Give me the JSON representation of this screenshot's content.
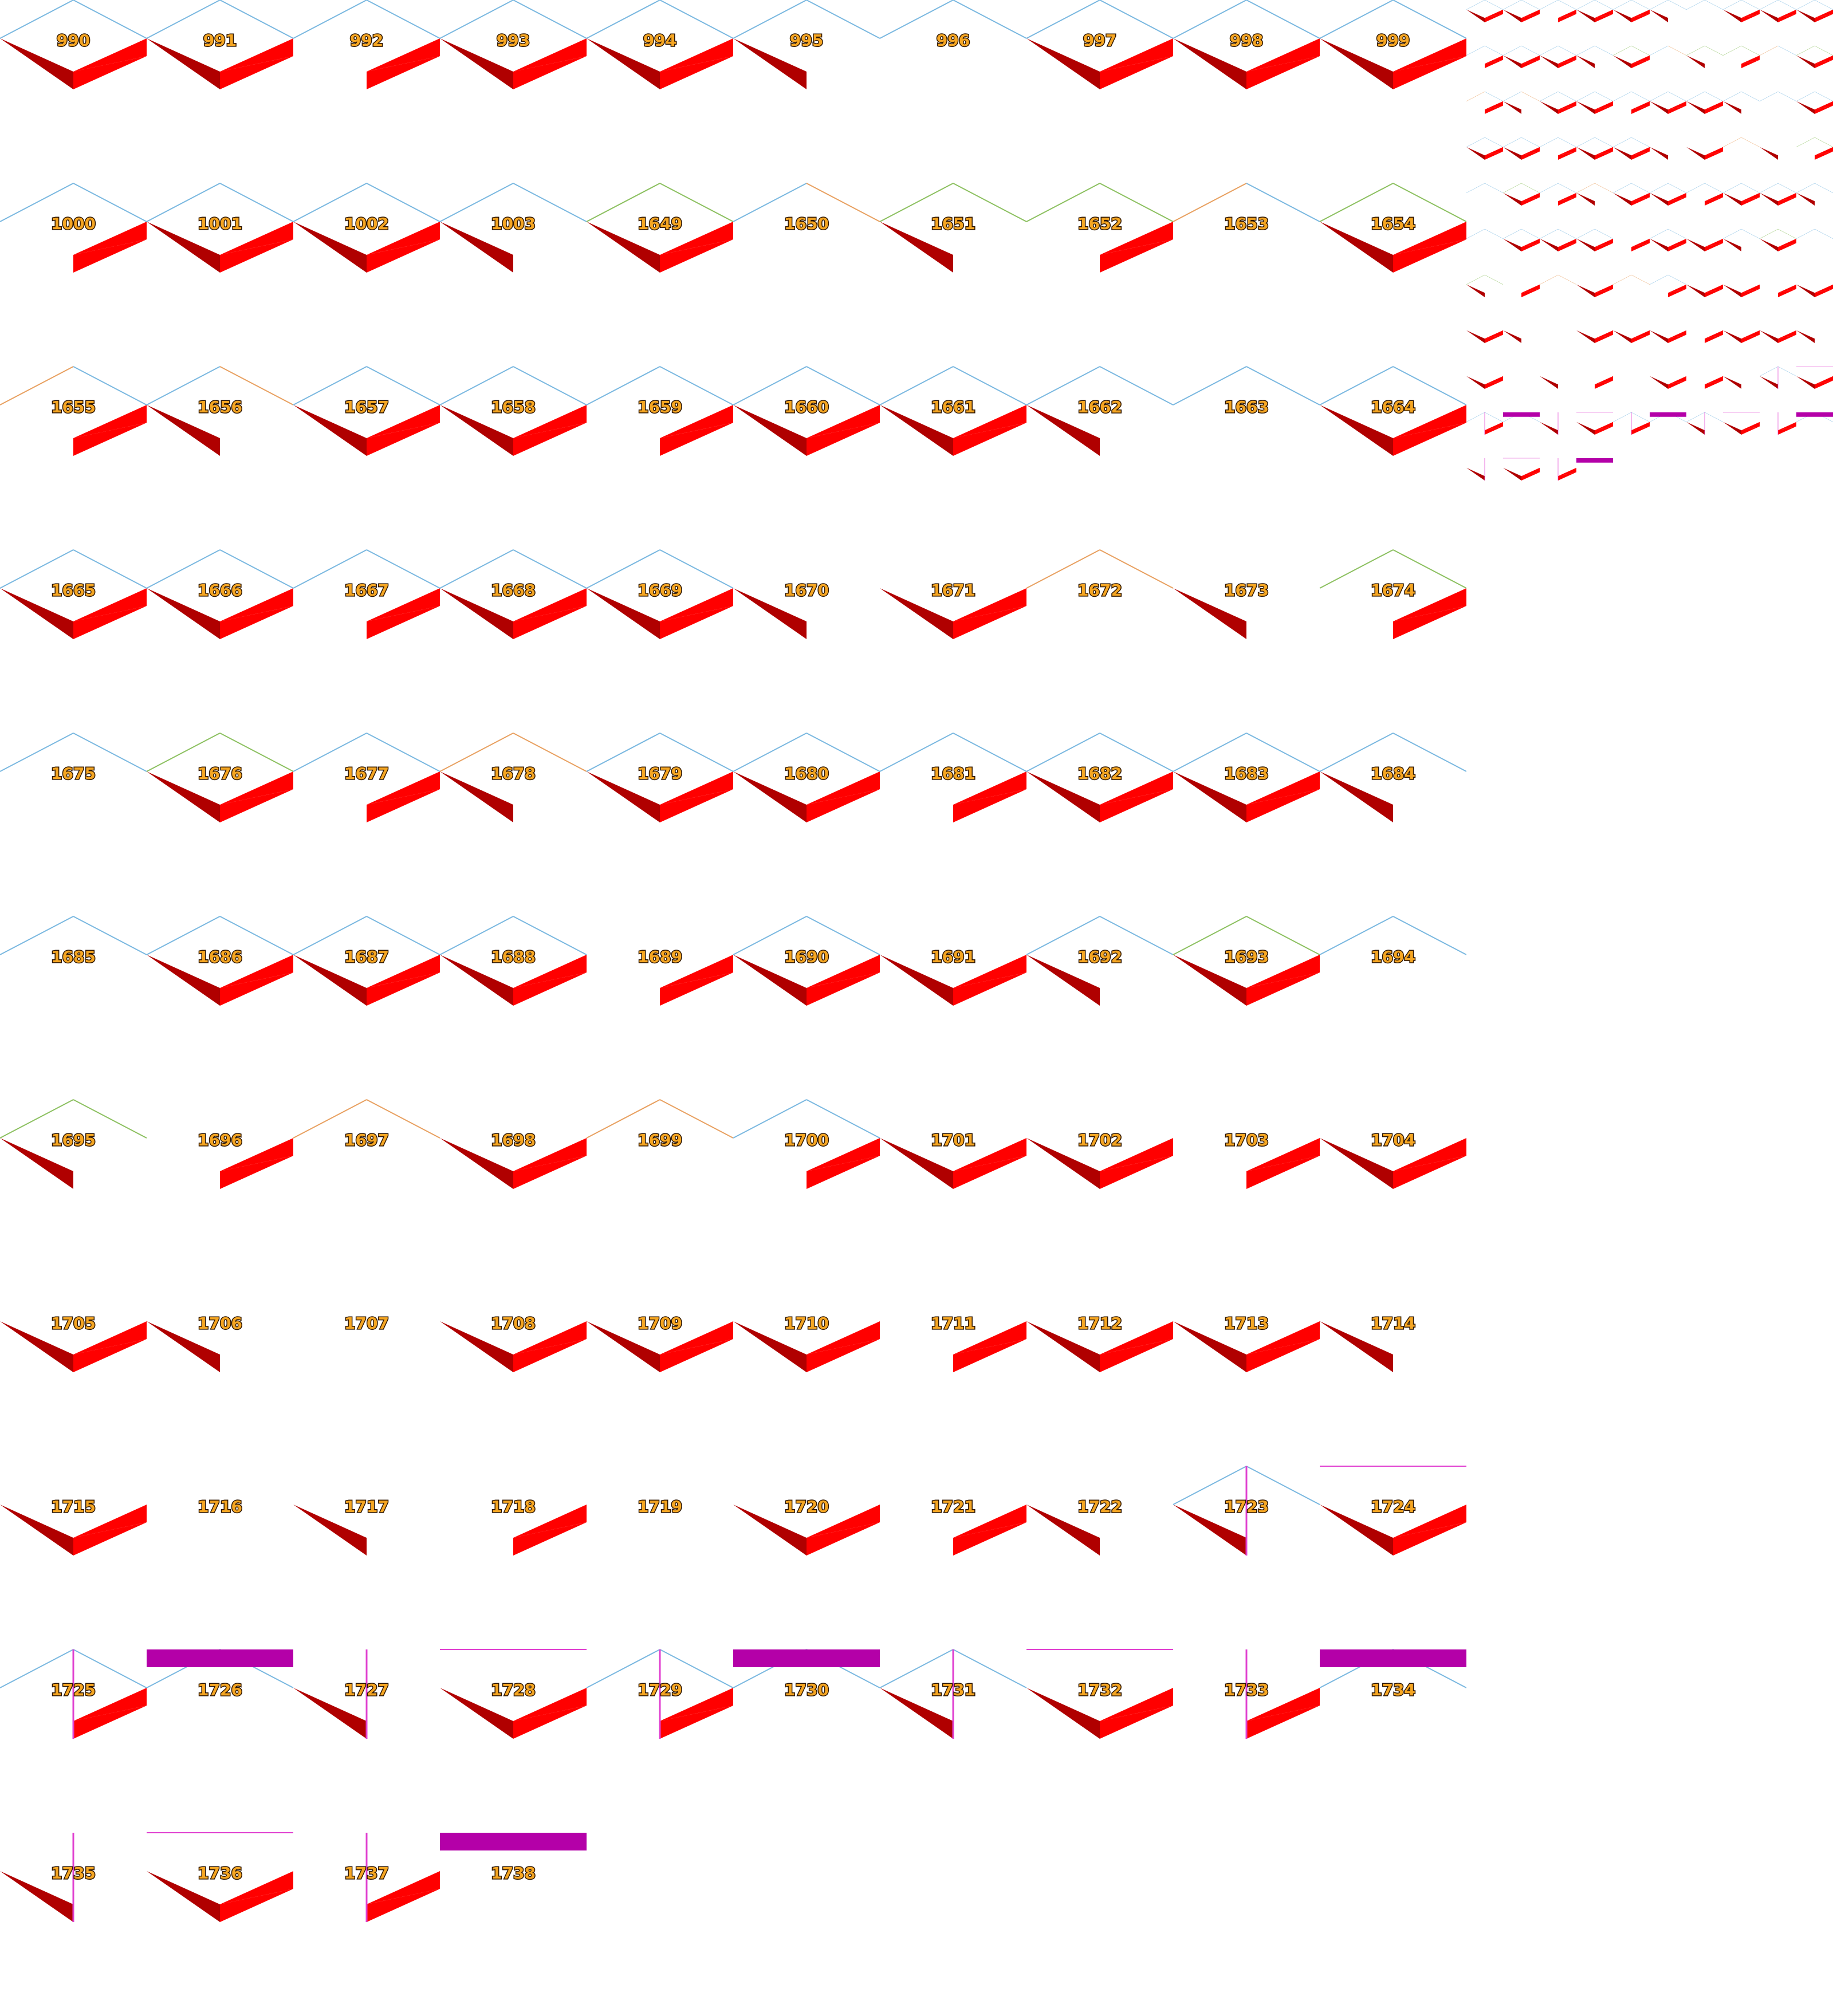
{
  "colors": {
    "face_light": "#ff0000",
    "face_dark": "#b00000",
    "edge_blue": "#7ab8e0",
    "edge_green": "#8cc060",
    "edge_orange": "#e8a060",
    "magenta": "#b400a8",
    "magenta_line": "#e040d0",
    "label_fill": "#f5a623",
    "label_stroke": "#2b1400"
  },
  "tiles": [
    {
      "label": "990",
      "l": "dn",
      "r": "up",
      "e": "b"
    },
    {
      "label": "991",
      "l": "dn",
      "r": "up",
      "e": "b"
    },
    {
      "label": "992",
      "l": "",
      "r": "up",
      "e": "b"
    },
    {
      "label": "993",
      "l": "dn",
      "r": "up",
      "e": "b"
    },
    {
      "label": "994",
      "l": "dn",
      "r": "up",
      "e": "b"
    },
    {
      "label": "995",
      "l": "dn",
      "r": "",
      "e": "b"
    },
    {
      "label": "996",
      "l": "",
      "r": "",
      "e": "b"
    },
    {
      "label": "997",
      "l": "dn",
      "r": "up",
      "e": "b"
    },
    {
      "label": "998",
      "l": "dn",
      "r": "up",
      "e": "b"
    },
    {
      "label": "999",
      "l": "dn",
      "r": "up",
      "e": "b"
    },
    {
      "label": "1000",
      "l": "",
      "r": "up",
      "e": "b"
    },
    {
      "label": "1001",
      "l": "dn",
      "r": "up",
      "e": "b"
    },
    {
      "label": "1002",
      "l": "dn",
      "r": "up",
      "e": "b"
    },
    {
      "label": "1003",
      "l": "dn",
      "r": "",
      "e": "b"
    },
    {
      "label": "1649",
      "l": "dn",
      "r": "up",
      "e": "g"
    },
    {
      "label": "1650",
      "l": "",
      "r": "",
      "e": "bo"
    },
    {
      "label": "1651",
      "l": "dn",
      "r": "",
      "e": "g"
    },
    {
      "label": "1652",
      "l": "",
      "r": "up",
      "e": "g"
    },
    {
      "label": "1653",
      "l": "",
      "r": "",
      "e": "ob"
    },
    {
      "label": "1654",
      "l": "dn",
      "r": "up",
      "e": "g"
    },
    {
      "label": "1655",
      "l": "",
      "r": "up",
      "e": "ob"
    },
    {
      "label": "1656",
      "l": "dn",
      "r": "",
      "e": "bo"
    },
    {
      "label": "1657",
      "l": "dn",
      "r": "up",
      "e": "b"
    },
    {
      "label": "1658",
      "l": "dn",
      "r": "up",
      "e": "b"
    },
    {
      "label": "1659",
      "l": "",
      "r": "up",
      "e": "b"
    },
    {
      "label": "1660",
      "l": "dn",
      "r": "up",
      "e": "b"
    },
    {
      "label": "1661",
      "l": "dn",
      "r": "up",
      "e": "b"
    },
    {
      "label": "1662",
      "l": "dn",
      "r": "",
      "e": "b"
    },
    {
      "label": "1663",
      "l": "",
      "r": "",
      "e": "b"
    },
    {
      "label": "1664",
      "l": "dn",
      "r": "up",
      "e": "b"
    },
    {
      "label": "1665",
      "l": "dn",
      "r": "up",
      "e": "b"
    },
    {
      "label": "1666",
      "l": "dn",
      "r": "up",
      "e": "b"
    },
    {
      "label": "1667",
      "l": "",
      "r": "up",
      "e": "b"
    },
    {
      "label": "1668",
      "l": "dn",
      "r": "up",
      "e": "b"
    },
    {
      "label": "1669",
      "l": "dn",
      "r": "up",
      "e": "b"
    },
    {
      "label": "1670",
      "l": "dn",
      "r": "",
      "e": ""
    },
    {
      "label": "1671",
      "l": "dn",
      "r": "up",
      "e": ""
    },
    {
      "label": "1672",
      "l": "",
      "r": "",
      "e": "o"
    },
    {
      "label": "1673",
      "l": "dn",
      "r": "",
      "e": ""
    },
    {
      "label": "1674",
      "l": "",
      "r": "up",
      "e": "g"
    },
    {
      "label": "1675",
      "l": "",
      "r": "",
      "e": "b"
    },
    {
      "label": "1676",
      "l": "dn",
      "r": "up",
      "e": "g"
    },
    {
      "label": "1677",
      "l": "",
      "r": "up",
      "e": "b"
    },
    {
      "label": "1678",
      "l": "dn",
      "r": "",
      "e": "o"
    },
    {
      "label": "1679",
      "l": "dn",
      "r": "up",
      "e": "b"
    },
    {
      "label": "1680",
      "l": "dn",
      "r": "up",
      "e": "b"
    },
    {
      "label": "1681",
      "l": "",
      "r": "up",
      "e": "b"
    },
    {
      "label": "1682",
      "l": "dn",
      "r": "up",
      "e": "b"
    },
    {
      "label": "1683",
      "l": "dn",
      "r": "up",
      "e": "b"
    },
    {
      "label": "1684",
      "l": "dn",
      "r": "",
      "e": "b"
    },
    {
      "label": "1685",
      "l": "",
      "r": "",
      "e": "b"
    },
    {
      "label": "1686",
      "l": "dn",
      "r": "up",
      "e": "b"
    },
    {
      "label": "1687",
      "l": "dn",
      "r": "up",
      "e": "b"
    },
    {
      "label": "1688",
      "l": "dn",
      "r": "up",
      "e": "b"
    },
    {
      "label": "1689",
      "l": "",
      "r": "up",
      "e": ""
    },
    {
      "label": "1690",
      "l": "dn",
      "r": "up",
      "e": "b"
    },
    {
      "label": "1691",
      "l": "dn",
      "r": "up",
      "e": ""
    },
    {
      "label": "1692",
      "l": "dn",
      "r": "",
      "e": "b"
    },
    {
      "label": "1693",
      "l": "dn",
      "r": "up",
      "e": "g"
    },
    {
      "label": "1694",
      "l": "",
      "r": "",
      "e": "b"
    },
    {
      "label": "1695",
      "l": "dn",
      "r": "",
      "e": "g"
    },
    {
      "label": "1696",
      "l": "",
      "r": "up",
      "e": ""
    },
    {
      "label": "1697",
      "l": "",
      "r": "",
      "e": "o"
    },
    {
      "label": "1698",
      "l": "dn",
      "r": "up",
      "e": ""
    },
    {
      "label": "1699",
      "l": "",
      "r": "",
      "e": "o"
    },
    {
      "label": "1700",
      "l": "",
      "r": "up",
      "e": "b"
    },
    {
      "label": "1701",
      "l": "dn",
      "r": "up",
      "e": ""
    },
    {
      "label": "1702",
      "l": "dn",
      "r": "up",
      "e": ""
    },
    {
      "label": "1703",
      "l": "",
      "r": "up",
      "e": ""
    },
    {
      "label": "1704",
      "l": "dn",
      "r": "up",
      "e": ""
    },
    {
      "label": "1705",
      "l": "dn",
      "r": "up",
      "e": ""
    },
    {
      "label": "1706",
      "l": "dn",
      "r": "",
      "e": ""
    },
    {
      "label": "1707",
      "l": "",
      "r": "",
      "e": ""
    },
    {
      "label": "1708",
      "l": "dn",
      "r": "up",
      "e": ""
    },
    {
      "label": "1709",
      "l": "dn",
      "r": "up",
      "e": ""
    },
    {
      "label": "1710",
      "l": "dn",
      "r": "up",
      "e": ""
    },
    {
      "label": "1711",
      "l": "",
      "r": "up",
      "e": ""
    },
    {
      "label": "1712",
      "l": "dn",
      "r": "up",
      "e": ""
    },
    {
      "label": "1713",
      "l": "dn",
      "r": "up",
      "e": ""
    },
    {
      "label": "1714",
      "l": "dn",
      "r": "",
      "e": ""
    },
    {
      "label": "1715",
      "l": "dn",
      "r": "up",
      "e": ""
    },
    {
      "label": "1716",
      "l": "",
      "r": "",
      "e": ""
    },
    {
      "label": "1717",
      "l": "dn",
      "r": "",
      "e": ""
    },
    {
      "label": "1718",
      "l": "",
      "r": "up",
      "e": ""
    },
    {
      "label": "1719",
      "l": "",
      "r": "",
      "e": ""
    },
    {
      "label": "1720",
      "l": "dn",
      "r": "up",
      "e": ""
    },
    {
      "label": "1721",
      "l": "",
      "r": "up",
      "e": ""
    },
    {
      "label": "1722",
      "l": "dn",
      "r": "",
      "e": ""
    },
    {
      "label": "1723",
      "l": "dn",
      "r": "",
      "e": "b",
      "mv": true
    },
    {
      "label": "1724",
      "l": "dn",
      "r": "up",
      "e": "",
      "mh": true
    },
    {
      "label": "1725",
      "l": "",
      "r": "up",
      "e": "b",
      "mv": true
    },
    {
      "label": "1726",
      "l": "",
      "r": "",
      "e": "b",
      "bar": true
    },
    {
      "label": "1727",
      "l": "dn",
      "r": "",
      "e": "",
      "mv": true
    },
    {
      "label": "1728",
      "l": "dn",
      "r": "up",
      "e": "",
      "mh": true
    },
    {
      "label": "1729",
      "l": "",
      "r": "up",
      "e": "b",
      "mv": true
    },
    {
      "label": "1730",
      "l": "",
      "r": "",
      "e": "b",
      "bar": true
    },
    {
      "label": "1731",
      "l": "dn",
      "r": "",
      "e": "b",
      "mv": true
    },
    {
      "label": "1732",
      "l": "dn",
      "r": "up",
      "e": "",
      "mh": true
    },
    {
      "label": "1733",
      "l": "",
      "r": "up",
      "e": "",
      "mv": true
    },
    {
      "label": "1734",
      "l": "",
      "r": "",
      "e": "b",
      "bar": true
    },
    {
      "label": "1735",
      "l": "dn",
      "r": "",
      "e": "",
      "mv": true
    },
    {
      "label": "1736",
      "l": "dn",
      "r": "up",
      "e": "",
      "mh": true
    },
    {
      "label": "1737",
      "l": "",
      "r": "up",
      "e": "",
      "mv": true
    },
    {
      "label": "1738",
      "l": "",
      "r": "",
      "e": "",
      "bar": true
    }
  ]
}
